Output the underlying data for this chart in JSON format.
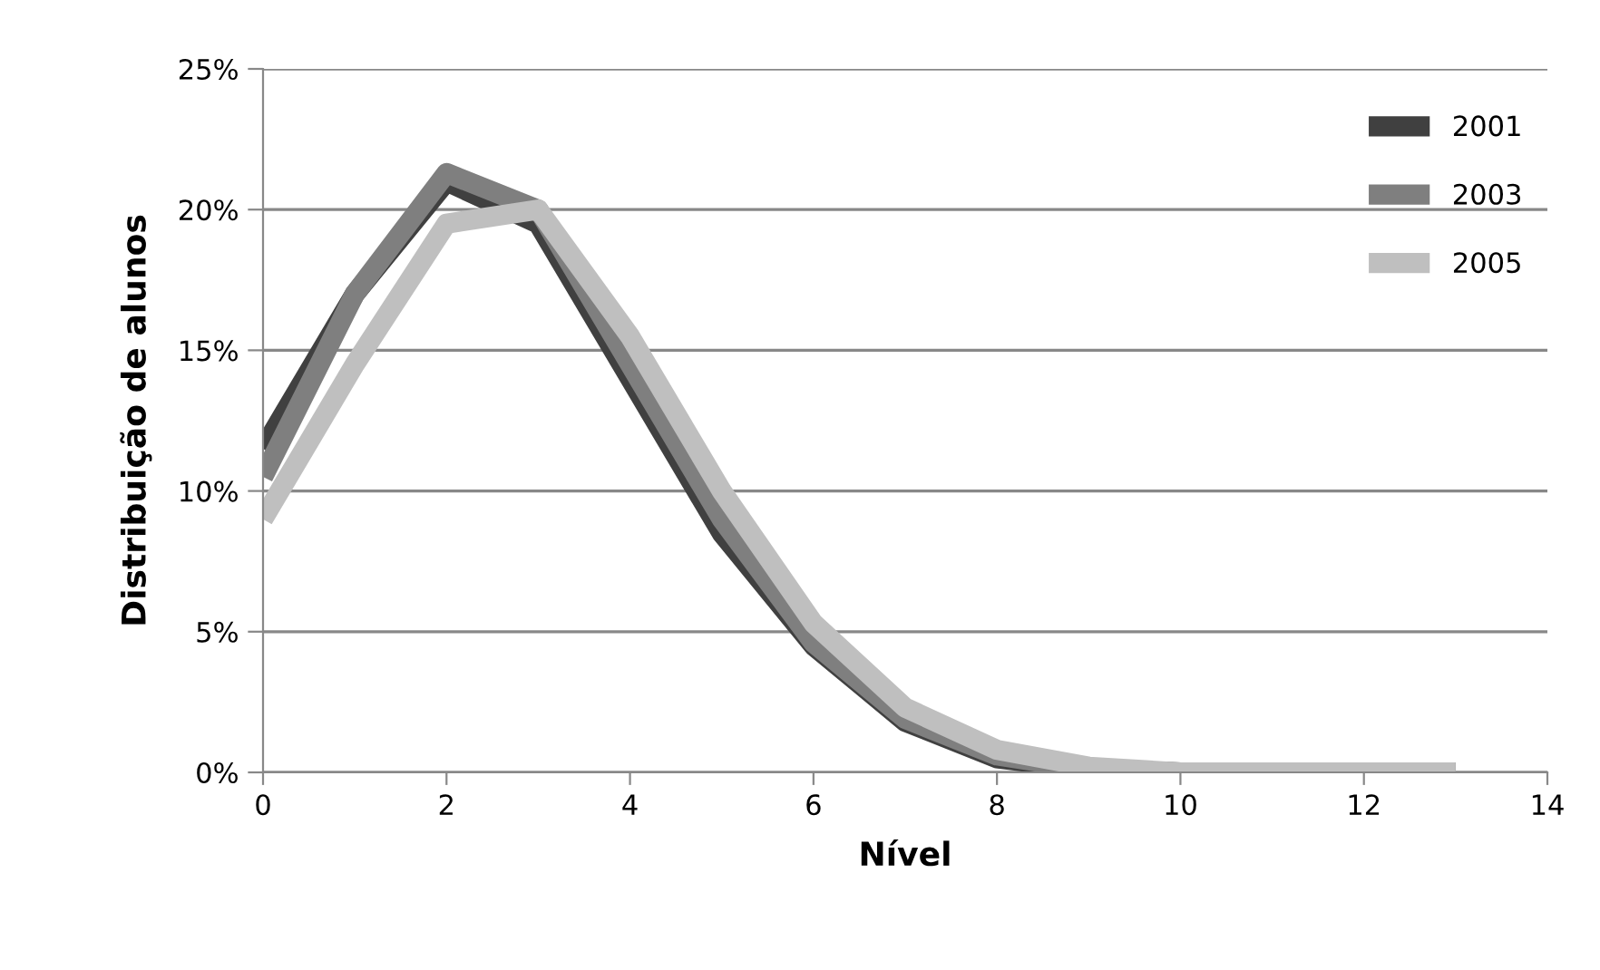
{
  "chart_data": {
    "type": "line",
    "xlabel": "Nível",
    "ylabel": "Distribuição de alunos",
    "x": [
      0,
      1,
      2,
      3,
      4,
      5,
      6,
      7,
      8,
      9,
      10,
      11,
      12,
      13
    ],
    "series": [
      {
        "name": "2001",
        "color": "#404040",
        "values": [
          11.5,
          17,
          21,
          19.5,
          14,
          8.5,
          4.5,
          1.8,
          0.5,
          0.1,
          0,
          0,
          0,
          0
        ]
      },
      {
        "name": "2003",
        "color": "#7f7f7f",
        "values": [
          10.5,
          17,
          21.3,
          20,
          14.5,
          9,
          4.6,
          1.9,
          0.6,
          0.1,
          0,
          0,
          0,
          0
        ]
      },
      {
        "name": "2005",
        "color": "#bfbfbf",
        "values": [
          9,
          14.5,
          19.5,
          20,
          15.5,
          10,
          5.3,
          2.3,
          0.8,
          0.2,
          0,
          0,
          0,
          0
        ]
      }
    ],
    "xlim": [
      0,
      14
    ],
    "xticks": [
      0,
      2,
      4,
      6,
      8,
      10,
      12,
      14
    ],
    "ylim": [
      0,
      25
    ],
    "yticks": [
      {
        "value": 0,
        "label": "0%"
      },
      {
        "value": 5,
        "label": "5%"
      },
      {
        "value": 10,
        "label": "10%"
      },
      {
        "value": 15,
        "label": "15%"
      },
      {
        "value": 20,
        "label": "20%"
      },
      {
        "value": 25,
        "label": "25%"
      }
    ],
    "grid": "y",
    "legend": "top right",
    "marker": "none",
    "line_style": "solid"
  }
}
